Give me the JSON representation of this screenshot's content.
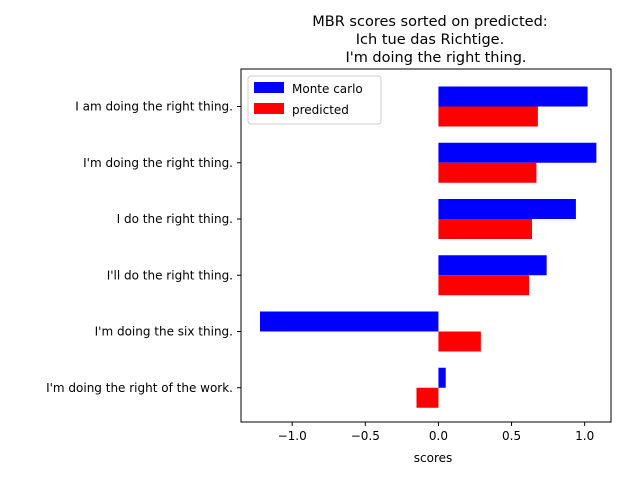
{
  "chart_data": {
    "type": "bar",
    "orientation": "horizontal",
    "title": [
      "MBR scores sorted on predicted:",
      "Ich tue das Richtige.",
      "I'm doing the right thing."
    ],
    "xlabel": "scores",
    "ylabel": "",
    "categories": [
      "I am doing the right thing.",
      "I'm doing the right thing.",
      "I do the right thing.",
      "I'll do the right thing.",
      "I'm doing the six thing.",
      "I'm doing the right of the work."
    ],
    "series": [
      {
        "name": "Monte carlo",
        "color": "#0000ff",
        "values": [
          1.02,
          1.08,
          0.94,
          0.74,
          -1.22,
          0.05
        ]
      },
      {
        "name": "predicted",
        "color": "#ff0000",
        "values": [
          0.68,
          0.67,
          0.64,
          0.62,
          0.29,
          -0.15
        ]
      }
    ],
    "xlim": [
      -1.35,
      1.18
    ],
    "xticks": [
      -1.0,
      -0.5,
      0.0,
      0.5,
      1.0
    ],
    "xtick_labels": [
      "−1.0",
      "−0.5",
      "0.0",
      "0.5",
      "1.0"
    ],
    "grid": false,
    "legend_position": "upper-left"
  }
}
